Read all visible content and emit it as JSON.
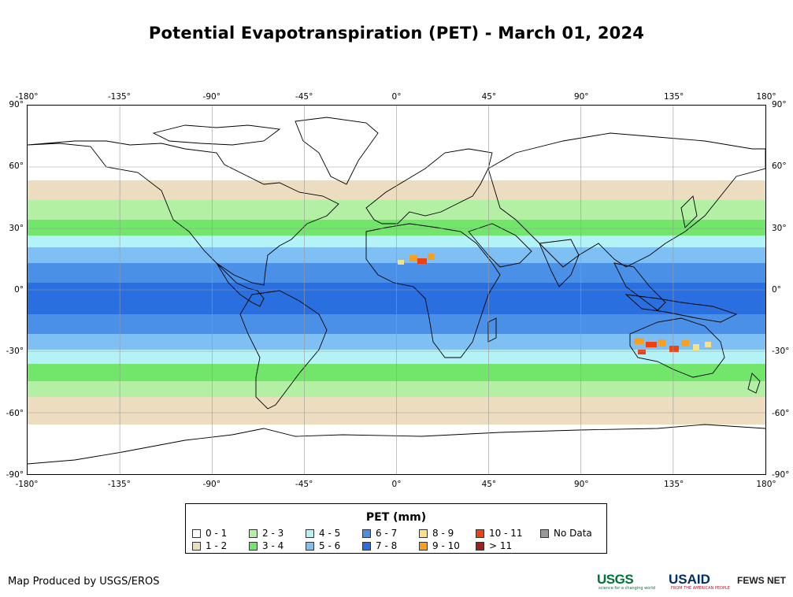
{
  "title": "Potential Evapotranspiration (PET) - March 01, 2024",
  "axes": {
    "longitude_ticks": [
      "-180°",
      "-135°",
      "-90°",
      "-45°",
      "0°",
      "45°",
      "90°",
      "135°",
      "180°"
    ],
    "latitude_ticks": [
      "90°",
      "60°",
      "30°",
      "0°",
      "-30°",
      "-60°",
      "-90°"
    ]
  },
  "legend": {
    "title": "PET (mm)",
    "items": [
      {
        "label": "0 - 1",
        "color": "#ffffff"
      },
      {
        "label": "1 - 2",
        "color": "#ecdcc0"
      },
      {
        "label": "2 - 3",
        "color": "#b3f0a4"
      },
      {
        "label": "3 - 4",
        "color": "#71e66a"
      },
      {
        "label": "4 - 5",
        "color": "#b3f2f7"
      },
      {
        "label": "5 - 6",
        "color": "#7ec0f4"
      },
      {
        "label": "6 - 7",
        "color": "#4a90e6"
      },
      {
        "label": "7 - 8",
        "color": "#2a6fe0"
      },
      {
        "label": "8 - 9",
        "color": "#f9e08a"
      },
      {
        "label": "9 - 10",
        "color": "#f7a020"
      },
      {
        "label": "10 - 11",
        "color": "#f04010"
      },
      {
        "label": "> 11",
        "color": "#a02020"
      },
      {
        "label": "No Data",
        "color": "#999999"
      }
    ]
  },
  "credit": "Map Produced by USGS/EROS",
  "logos": {
    "usgs": "USGS",
    "usgs_tagline": "science for a changing world",
    "usaid": "USAID",
    "usaid_tagline": "FROM THE AMERICAN PEOPLE",
    "fews": "FEWS NET"
  }
}
